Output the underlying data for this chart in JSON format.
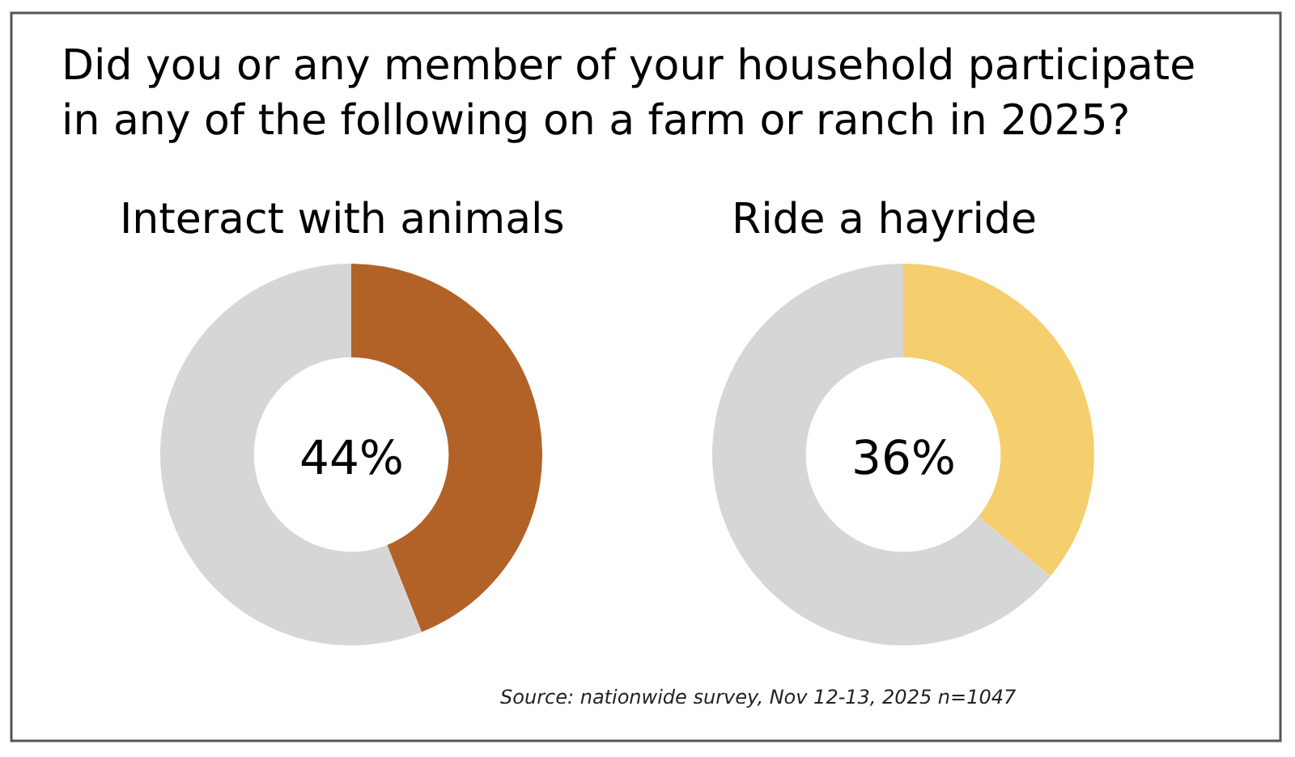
{
  "chart_data": [
    {
      "type": "other",
      "title": "Did you or any member of your household participate in any of the following on a farm or ranch in 2025?",
      "annotations": [
        "Source: nationwide survey, Nov 12-13, 2025 n=1047"
      ]
    },
    {
      "type": "donut",
      "title": "Interact with animals",
      "categories": [
        null,
        null
      ],
      "values": [
        44,
        56
      ],
      "colors": [
        "#b26227",
        "#d6d6d6"
      ],
      "annotations": [
        "44%"
      ]
    },
    {
      "type": "donut",
      "title": "Ride a hayride",
      "categories": [
        null,
        null
      ],
      "values": [
        36,
        64
      ],
      "colors": [
        "#f5cf6e",
        "#d6d6d6"
      ],
      "annotations": [
        "36%"
      ]
    }
  ]
}
